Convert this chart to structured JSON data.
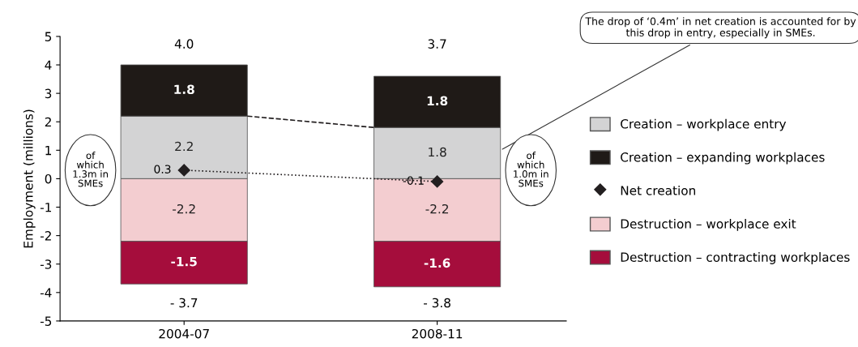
{
  "chart_data": {
    "type": "bar",
    "stacked": true,
    "ylabel": "Employment (millions)",
    "categories": [
      "2004-07",
      "2008-11"
    ],
    "series": [
      {
        "name": "Creation – workplace entry",
        "color": "#d3d3d4",
        "values": [
          2.2,
          1.8
        ]
      },
      {
        "name": "Creation – expanding workplaces",
        "color": "#1f1a17",
        "values": [
          1.8,
          1.8
        ]
      },
      {
        "name": "Net creation",
        "type": "line",
        "color": "#231f20",
        "line_style": "dotted",
        "marker": "diamond",
        "values": [
          0.3,
          -0.1
        ],
        "value_labels": [
          "0.3",
          "-0.1"
        ]
      },
      {
        "name": "Destruction – workplace exit",
        "color": "#f3cdd0",
        "values": [
          -2.2,
          -2.2
        ]
      },
      {
        "name": "Destruction – contracting workplaces",
        "color": "#a50d3c",
        "values": [
          -1.5,
          -1.6
        ]
      }
    ],
    "data_labels": true,
    "annotations": [
      "4.0",
      "3.7",
      "- 3.7",
      "- 3.8",
      "of which 1.3m in SMEs",
      "of which 1.0m in SMEs",
      "The drop of ‘0.4m’ in net creation is accounted for by this drop in entry, especially in SMEs."
    ],
    "ylim": [
      -5,
      5
    ],
    "yticks": [
      -5,
      -4,
      -3,
      -2,
      -1,
      0,
      1,
      2,
      3,
      4,
      5
    ],
    "grid": false,
    "legend": "right"
  }
}
